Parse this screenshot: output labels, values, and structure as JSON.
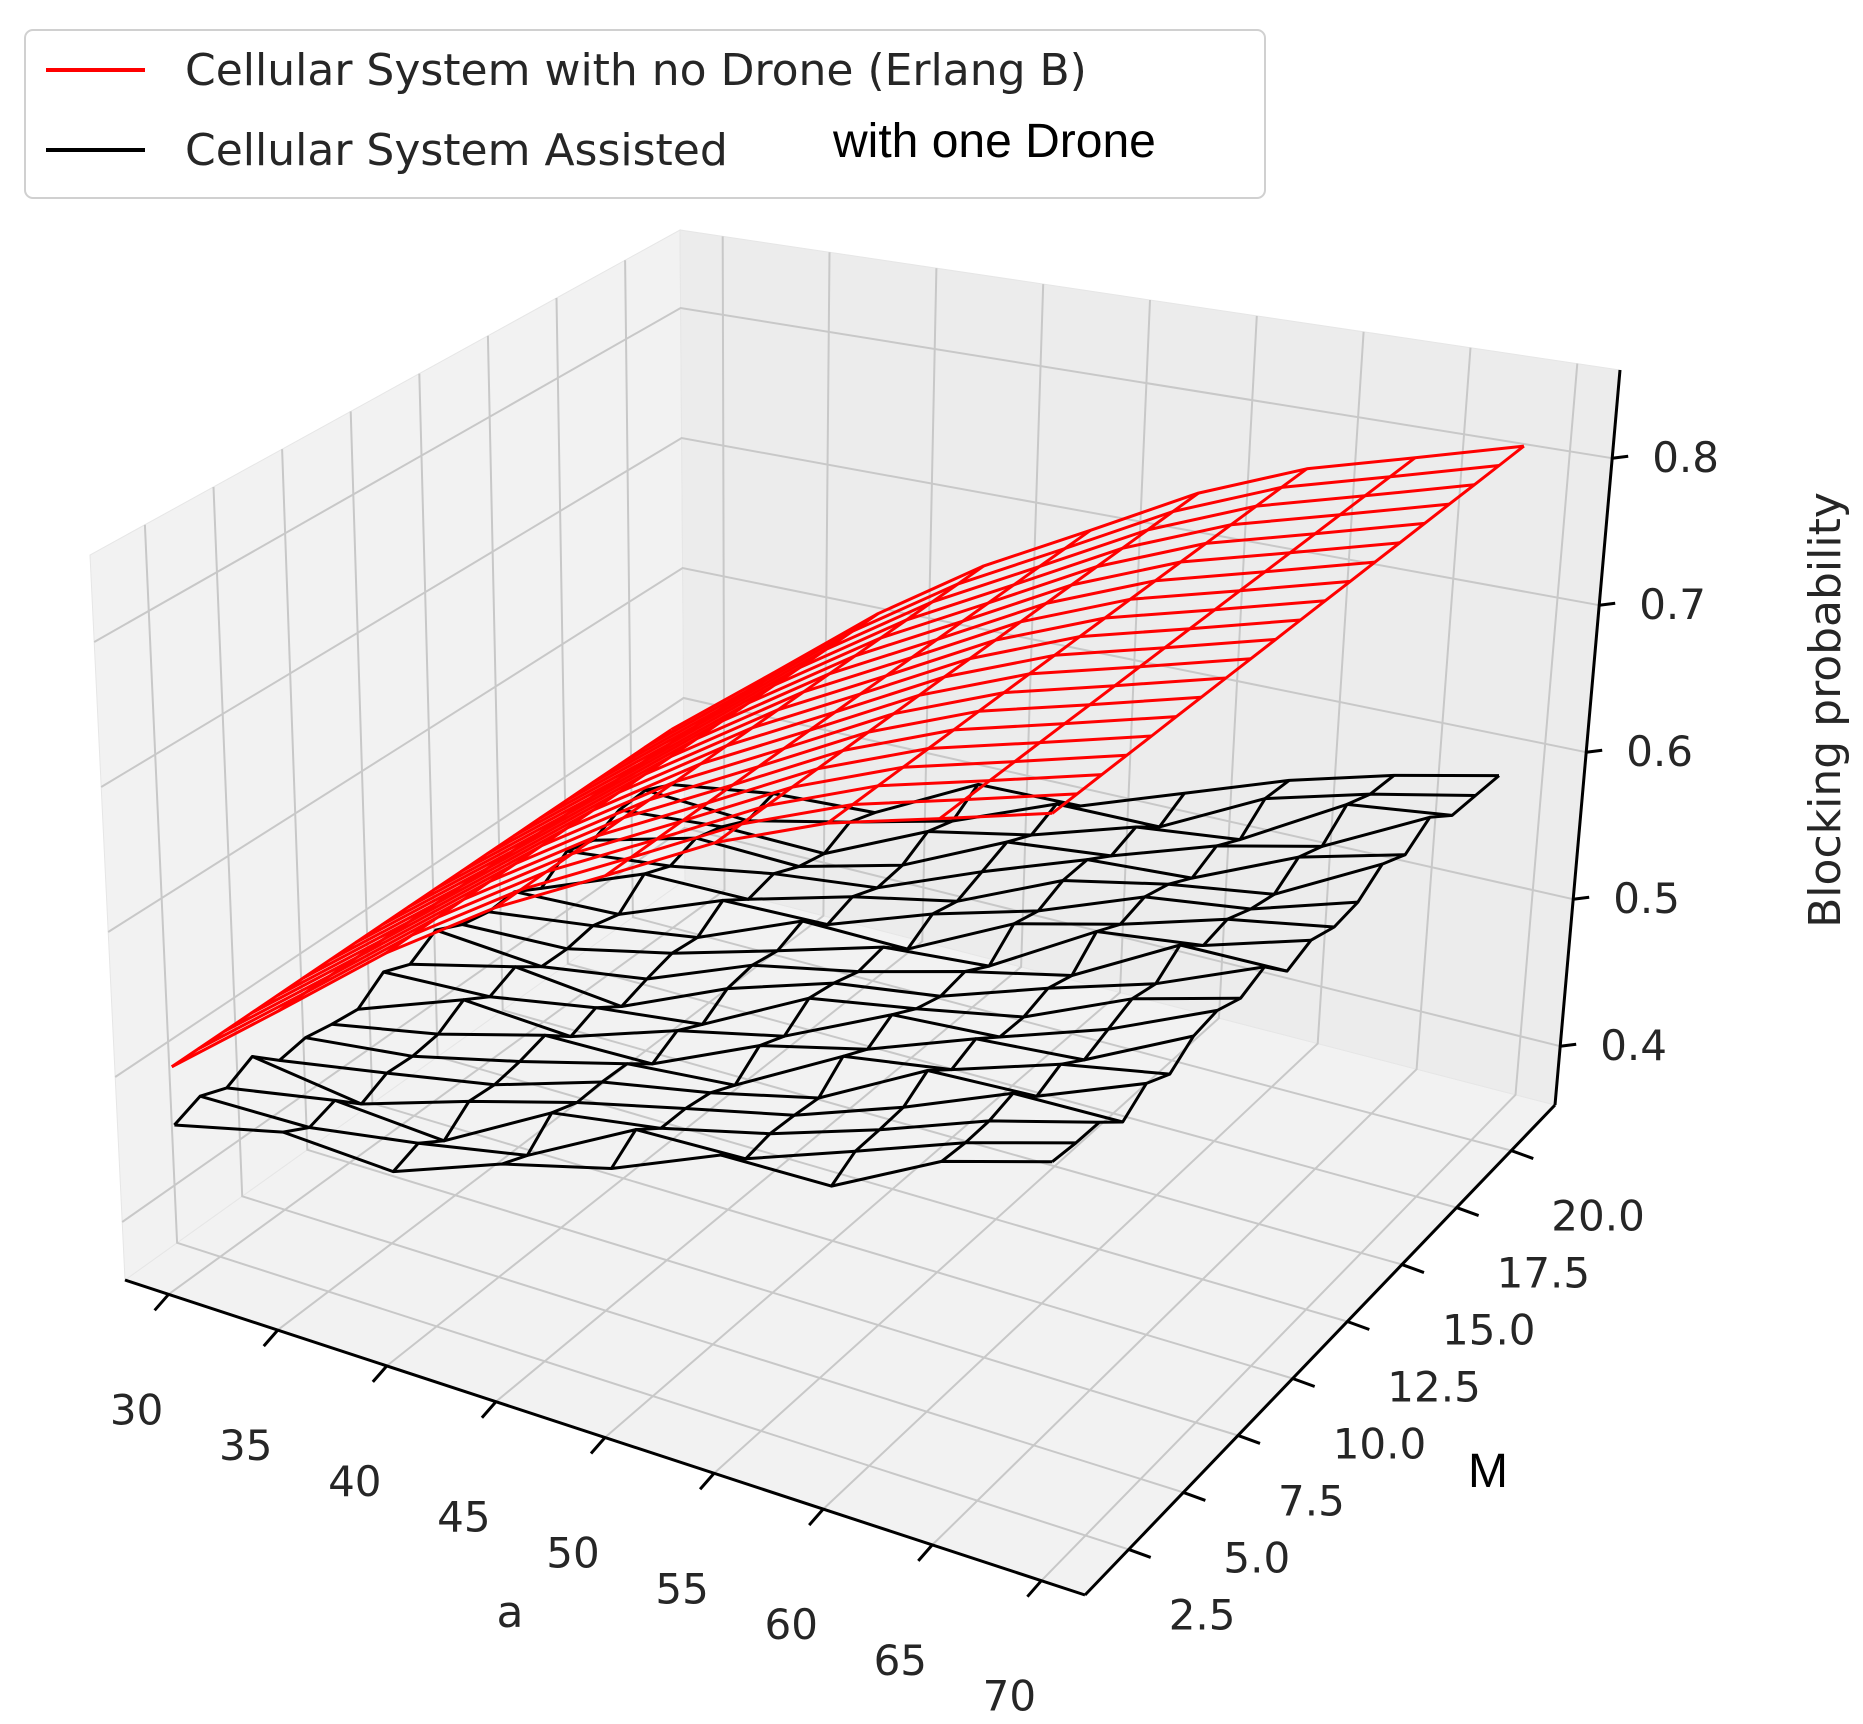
{
  "chart_data": {
    "type": "wireframe-3d",
    "title": "",
    "xlabel": "a",
    "ylabel": "M",
    "zlabel": "Blocking probability",
    "x_ticks": [
      "30",
      "35",
      "40",
      "45",
      "50",
      "55",
      "60",
      "65",
      "70"
    ],
    "y_ticks": [
      "2.5",
      "5.0",
      "7.5",
      "10.0",
      "12.5",
      "15.0",
      "17.5",
      "20.0"
    ],
    "z_ticks": [
      "0.4",
      "0.5",
      "0.6",
      "0.7",
      "0.8"
    ],
    "xlim": [
      28,
      72
    ],
    "ylim": [
      0.5,
      22
    ],
    "zlim": [
      0.36,
      0.86
    ],
    "grid": true,
    "legend_position": "top-left",
    "legend": {
      "item1_label": "Cellular System with no Drone (Erlang B)",
      "item2_label_part1": "Cellular System Assisted",
      "item2_label_part2": "with one Drone"
    },
    "a_values": [
      30,
      35,
      40,
      45,
      50,
      55,
      60,
      65,
      70
    ],
    "M_values": [
      1,
      2,
      3,
      4,
      5,
      6,
      7,
      8,
      9,
      10,
      11,
      12,
      13,
      14,
      15,
      16,
      17,
      18,
      19,
      20
    ],
    "series": [
      {
        "name": "Cellular System with no Drone (Erlang B)",
        "color": "#ff0000",
        "blocking_probability_vs_a": [
          0.51,
          0.57,
          0.63,
          0.68,
          0.72,
          0.76,
          0.79,
          0.81,
          0.83
        ]
      },
      {
        "name": "Cellular System Assisted with one Drone",
        "color": "#000000",
        "blocking_probability_vs_a": [
          0.47,
          0.48,
          0.49,
          0.51,
          0.53,
          0.55,
          0.57,
          0.59,
          0.61
        ],
        "variation_amplitude": 0.012
      }
    ]
  }
}
